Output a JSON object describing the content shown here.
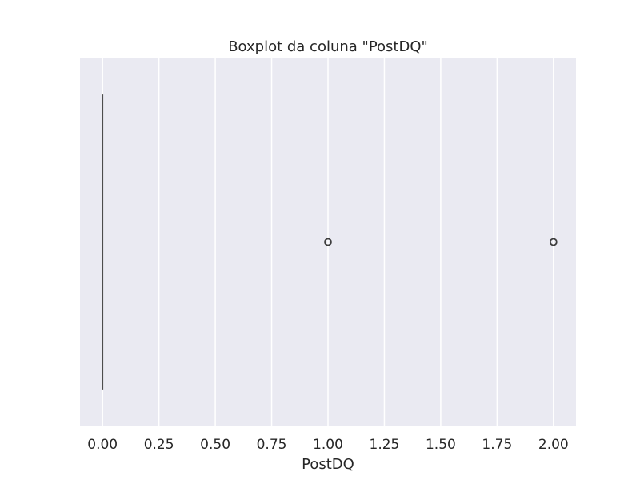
{
  "chart_data": {
    "type": "boxplot",
    "orientation": "horizontal",
    "title": "Boxplot da coluna \"PostDQ\"",
    "xlabel": "PostDQ",
    "ylabel": "",
    "xlim": [
      -0.1,
      2.1
    ],
    "xticks": [
      0.0,
      0.25,
      0.5,
      0.75,
      1.0,
      1.25,
      1.5,
      1.75,
      2.0
    ],
    "xtick_labels": [
      "0.00",
      "0.25",
      "0.50",
      "0.75",
      "1.00",
      "1.25",
      "1.50",
      "1.75",
      "2.00"
    ],
    "grid": true,
    "box": {
      "min": 0,
      "q1": 0,
      "median": 0,
      "q3": 0,
      "max": 0
    },
    "outliers": [
      1.0,
      2.0
    ],
    "colors": {
      "background": "#eaeaf2",
      "grid": "#ffffff",
      "box_line": "#4d4d4d",
      "outlier_edge": "#3d3d3d"
    }
  }
}
